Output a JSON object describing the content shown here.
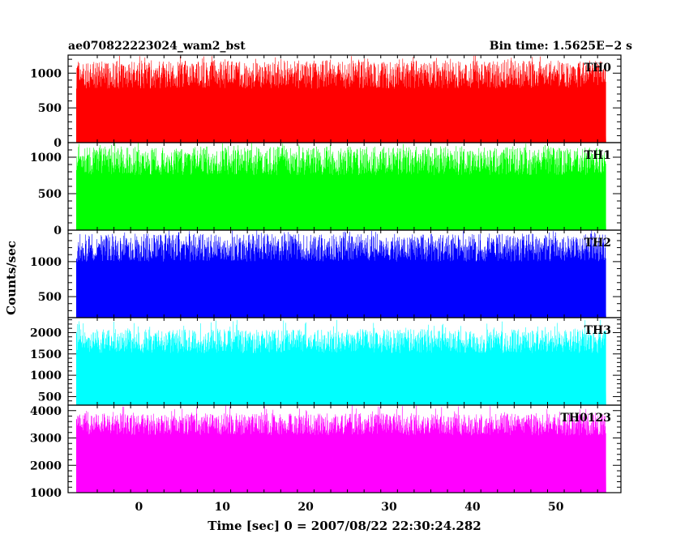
{
  "header": {
    "left_title": "ae070822223024_wam2_bst",
    "right_title": "Bin time: 1.5625E−2 s"
  },
  "chart_data": {
    "type": "line",
    "xlabel": "Time [sec] 0 = 2007/08/22 22:30:24.282",
    "ylabel": "Counts/sec",
    "xlim": [
      -8.5,
      57.8
    ],
    "x_ticks": [
      0,
      10,
      20,
      30,
      40,
      50
    ],
    "x_tick_labels": [
      "0",
      "10",
      "20",
      "30",
      "40",
      "50"
    ],
    "data_x_range": [
      -7.5,
      56
    ],
    "panels": [
      {
        "name": "TH0",
        "color": "#ff0000",
        "ylim": [
          0,
          1260
        ],
        "ticks": [
          0,
          500,
          1000
        ],
        "tick_labels": [
          "0",
          "500",
          "1000"
        ],
        "baseline": 0,
        "low": 80,
        "high": 980,
        "max": 1250
      },
      {
        "name": "TH1",
        "color": "#00ff00",
        "ylim": [
          0,
          1200
        ],
        "ticks": [
          0,
          500,
          1000
        ],
        "tick_labels": [
          "0",
          "500",
          "1000"
        ],
        "baseline": 0,
        "low": 80,
        "high": 950,
        "max": 1200
      },
      {
        "name": "TH2",
        "color": "#0000ff",
        "ylim": [
          200,
          1450
        ],
        "ticks": [
          500,
          1000
        ],
        "tick_labels": [
          "500",
          "1000"
        ],
        "baseline": 200,
        "low": 310,
        "high": 1200,
        "max": 1450
      },
      {
        "name": "TH3",
        "color": "#00ffff",
        "ylim": [
          300,
          2350
        ],
        "ticks": [
          500,
          1000,
          1500,
          2000
        ],
        "tick_labels": [
          "500",
          "1000",
          "1500",
          "2000"
        ],
        "baseline": 300,
        "low": 550,
        "high": 1800,
        "max": 2300
      },
      {
        "name": "TH0123",
        "color": "#ff00ff",
        "ylim": [
          1000,
          4200
        ],
        "ticks": [
          1000,
          2000,
          3000,
          4000
        ],
        "tick_labels": [
          "1000",
          "2000",
          "3000",
          "4000"
        ],
        "baseline": 1000,
        "low": 1700,
        "high": 3500,
        "max": 4200
      }
    ]
  }
}
